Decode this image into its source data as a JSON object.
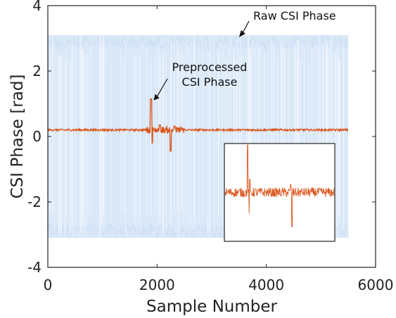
{
  "chart_data": {
    "type": "line",
    "xlabel": "Sample Number",
    "ylabel": "CSI Phase [rad]",
    "xlim": [
      0,
      6000
    ],
    "ylim": [
      -4,
      4
    ],
    "x_ticks": [
      "0",
      "2000",
      "4000",
      "6000"
    ],
    "y_ticks": [
      "-4",
      "-2",
      "0",
      "2",
      "4"
    ],
    "grid": false,
    "series": [
      {
        "name": "Raw CSI Phase",
        "color": "#dae8f8",
        "x_range": [
          0,
          5500
        ],
        "band": [
          -3.1,
          3.1
        ],
        "description_values": {
          "min": -3.14,
          "max": 3.14
        }
      },
      {
        "name": "Preprocessed CSI Phase",
        "color": "#d95319",
        "x_range": [
          0,
          5500
        ],
        "baseline": 0.2,
        "spikes": [
          {
            "x": 1890,
            "y": 1.15
          },
          {
            "x": 1910,
            "y": -0.2
          },
          {
            "x": 2250,
            "y": -0.45
          },
          {
            "x": 2050,
            "y": 0.35
          },
          {
            "x": 2320,
            "y": 0.32
          }
        ]
      }
    ],
    "annotations": [
      {
        "text": "Raw CSI Phase",
        "arrow_to": {
          "x": 3500,
          "y": 3.1
        }
      },
      {
        "text_lines": [
          "Preprocessed",
          "CSI Phase"
        ],
        "arrow_to": {
          "x": 1900,
          "y": 1.15
        }
      }
    ],
    "inset": {
      "x_range": [
        1700,
        2600
      ],
      "description": "zoomed view of preprocessed phase"
    }
  }
}
